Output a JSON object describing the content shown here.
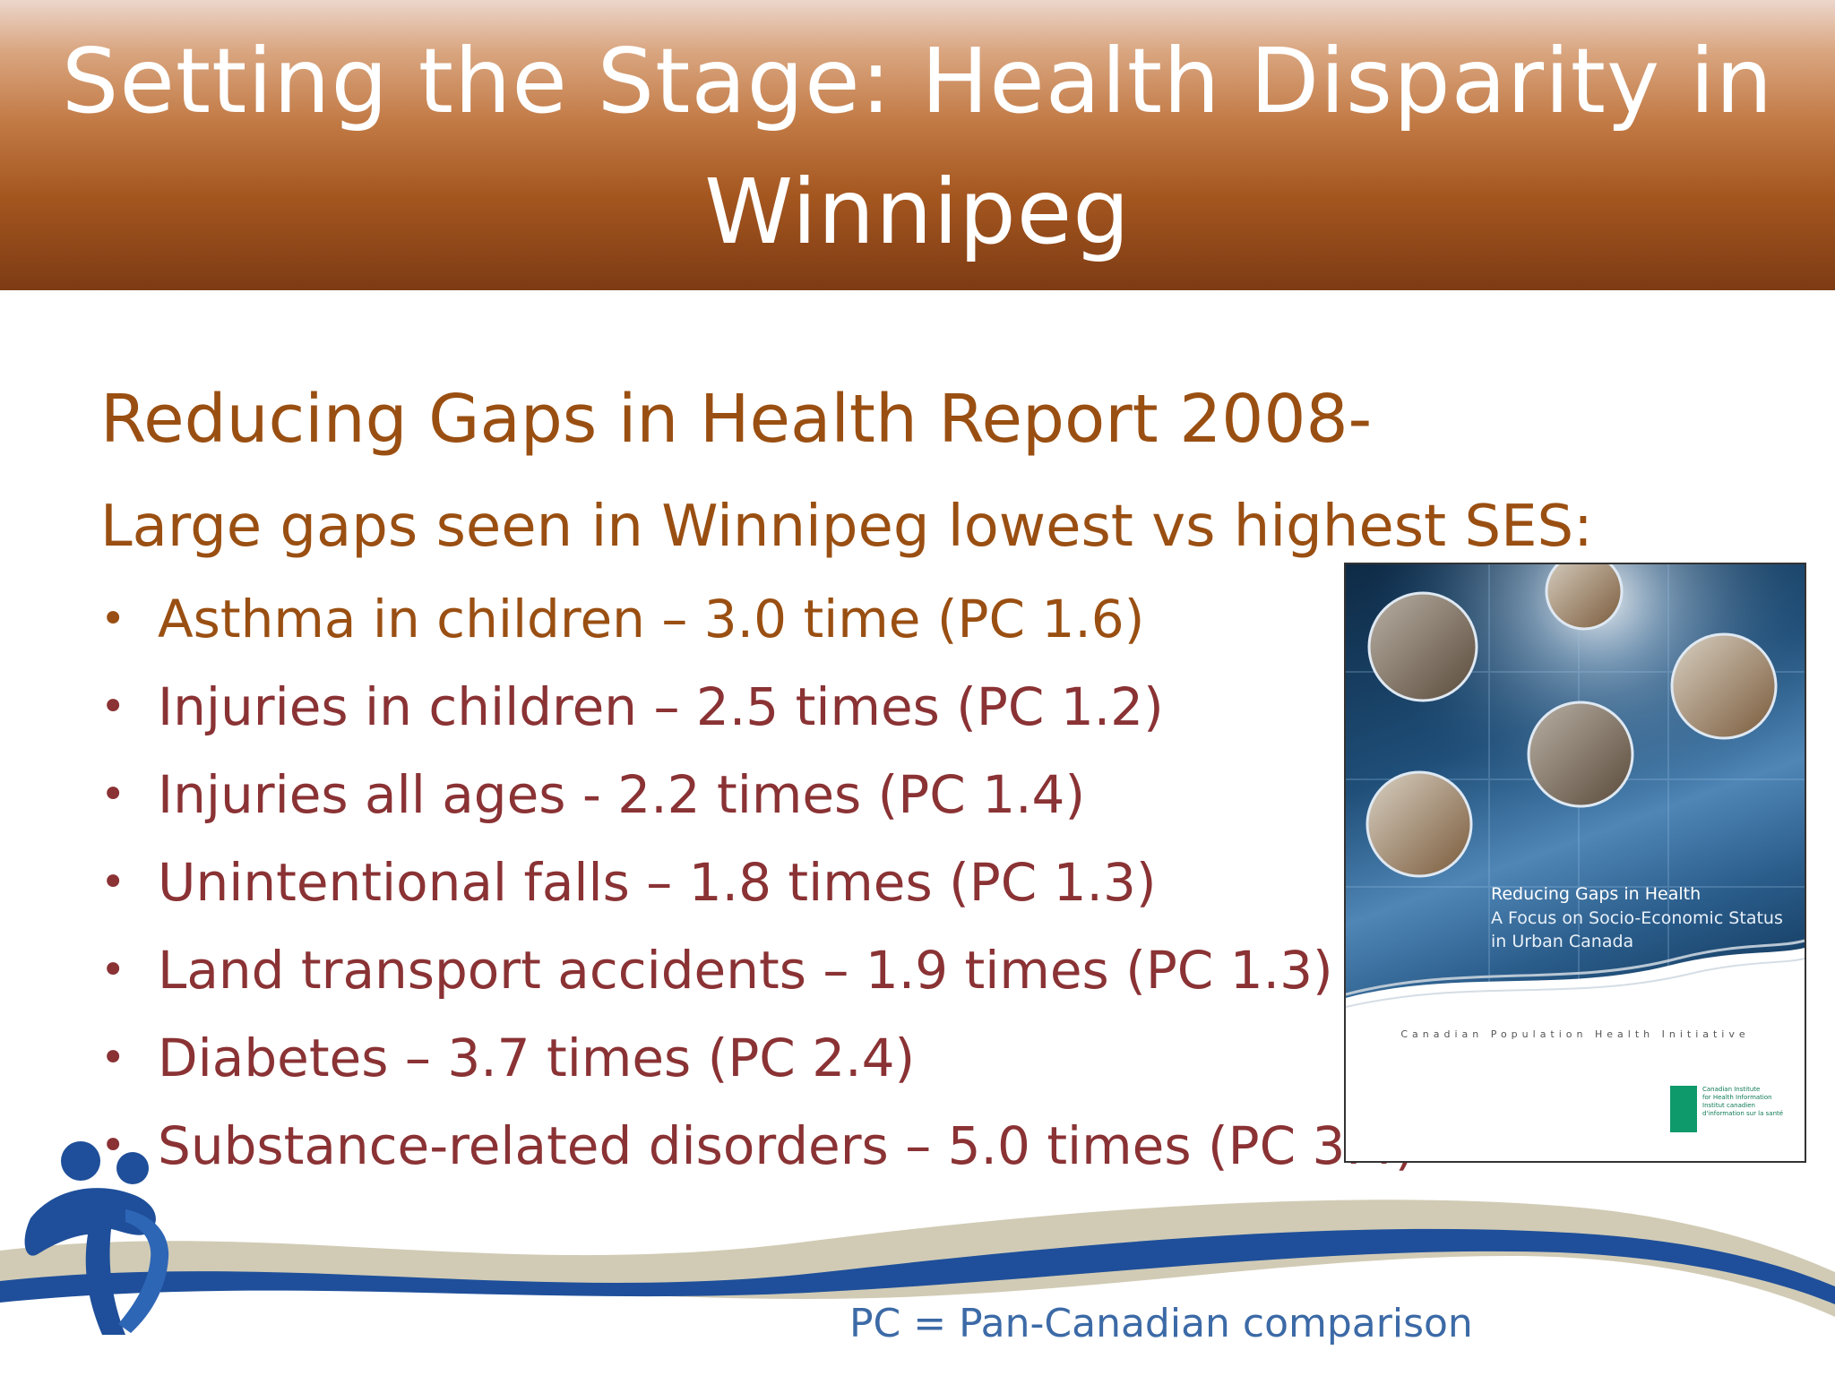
{
  "slide": {
    "title": "Setting the Stage: Health Disparity in Winnipeg",
    "heading": "Reducing Gaps in Health Report 2008-",
    "subheading": "Large gaps seen in Winnipeg lowest vs highest SES:",
    "bullet_glyph": "•",
    "bullets": [
      "Asthma in children – 3.0 time (PC 1.6)",
      "Injuries in children – 2.5 times (PC 1.2)",
      "Injuries all ages - 2.2 times (PC 1.4)",
      "Unintentional falls – 1.8 times (PC 1.3)",
      "Land transport accidents – 1.9 times (PC 1.3)",
      "Diabetes – 3.7 times (PC 2.4)",
      "Substance-related disorders – 5.0 times (PC 3.4)"
    ],
    "footnote": "PC = Pan-Canadian comparison"
  },
  "report_cover": {
    "title": "Reducing Gaps in Health",
    "subtitle": "A Focus on Socio-Economic Status in Urban Canada",
    "initiative": "Canadian Population Health Initiative",
    "org_en_1": "Canadian Institute",
    "org_en_2": "for Health Information",
    "org_fr_1": "Institut canadien",
    "org_fr_2": "d'information sur la santé"
  },
  "colors": {
    "header_top": "#ecd6cb",
    "header_bottom": "#7d3b14",
    "heading": "#9a4f12",
    "bullet_text": "#8a3234",
    "footnote": "#3c6aa6",
    "wave_blue": "#1f4f9a",
    "wave_tan": "#c7bfa6"
  }
}
